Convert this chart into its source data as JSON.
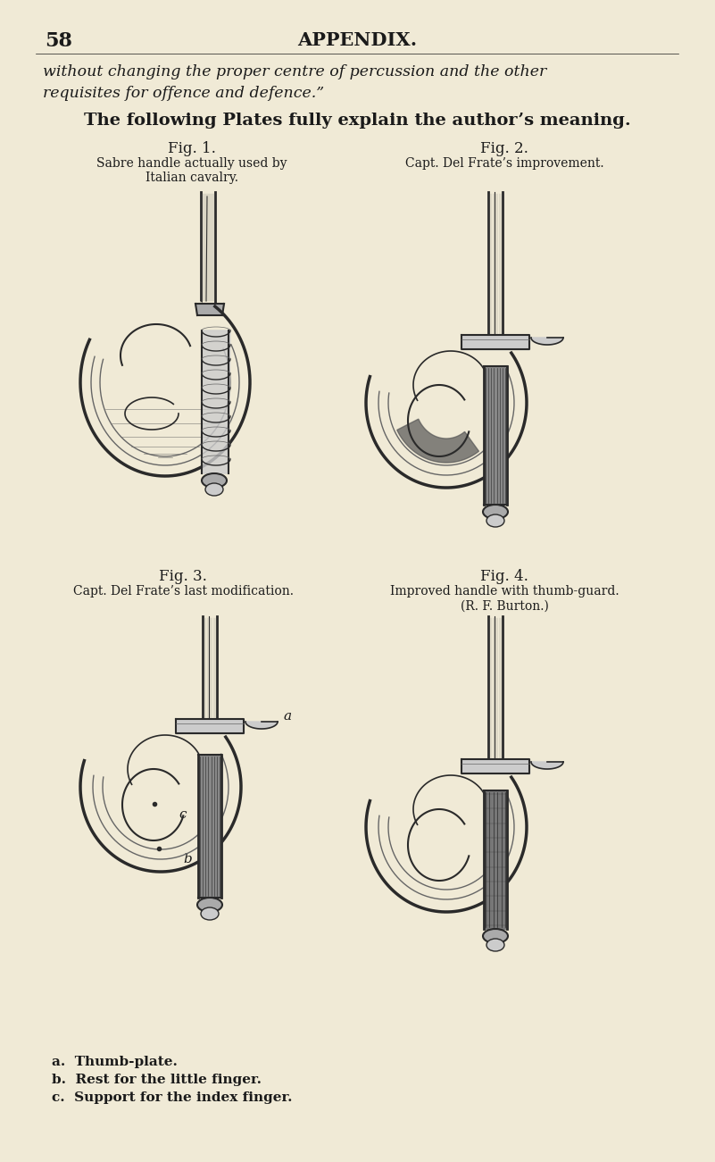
{
  "bg_color": "#f0ead6",
  "page_number": "58",
  "header_text": "APPENDIX.",
  "italic_text_line1": "without changing the proper centre of percussion and the other",
  "italic_text_line2": "requisites for offence and defence.”",
  "bold_text": "The following Plates fully explain the author’s meaning.",
  "fig1_label": "Fig. 1.",
  "fig1_caption_line1": "Sabre handle actually used by",
  "fig1_caption_line2": "Italian cavalry.",
  "fig2_label": "Fig. 2.",
  "fig2_caption": "Capt. Del Frate’s improvement.",
  "fig3_label": "Fig. 3.",
  "fig3_caption": "Capt. Del Frate’s last modification.",
  "fig4_label": "Fig. 4.",
  "fig4_caption_line1": "Improved handle with thumb-guard.",
  "fig4_caption_line2": "(R. F. Burton.)",
  "annotation_a": "a.  Thumb-plate.",
  "annotation_b": "b.  Rest for the little finger.",
  "annotation_c": "c.  Support for the index finger.",
  "text_color": "#1a1a1a",
  "dark": "#2a2a2a",
  "mid": "#666666",
  "light": "#aaaaaa",
  "vlight": "#cccccc"
}
